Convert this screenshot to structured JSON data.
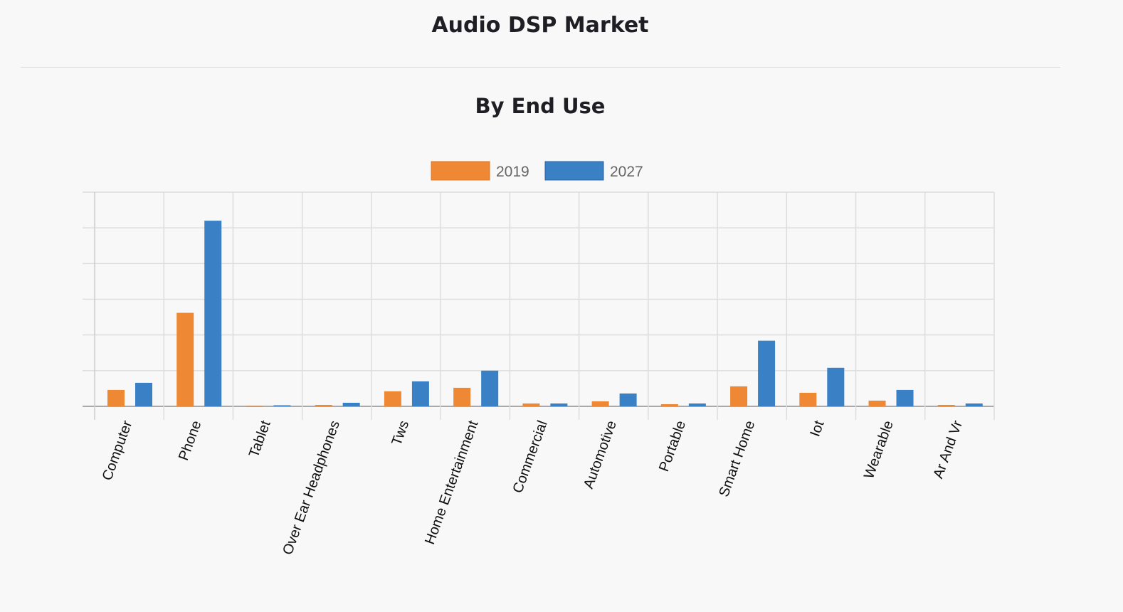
{
  "header": {
    "title": "Audio DSP Market"
  },
  "chart_data": {
    "type": "bar",
    "title": "By End Use",
    "xlabel": "",
    "ylabel": "",
    "ylim": [
      0,
      6
    ],
    "grid": true,
    "legend_position": "top-center",
    "categories": [
      "Computer",
      "Phone",
      "Tablet",
      "Over Ear Headphones",
      "Tws",
      "Home Entertainment",
      "Commercial",
      "Automotive",
      "Portable",
      "Smart Home",
      "Iot",
      "Wearable",
      "Ar And Vr"
    ],
    "series": [
      {
        "name": "2019",
        "color": "#ef8834",
        "values": [
          0.46,
          2.62,
          0.01,
          0.04,
          0.42,
          0.52,
          0.08,
          0.14,
          0.06,
          0.56,
          0.38,
          0.16,
          0.04
        ]
      },
      {
        "name": "2027",
        "color": "#3a80c5",
        "values": [
          0.66,
          5.2,
          0.03,
          0.1,
          0.7,
          1.0,
          0.08,
          0.36,
          0.08,
          1.84,
          1.08,
          0.46,
          0.08
        ]
      }
    ]
  }
}
